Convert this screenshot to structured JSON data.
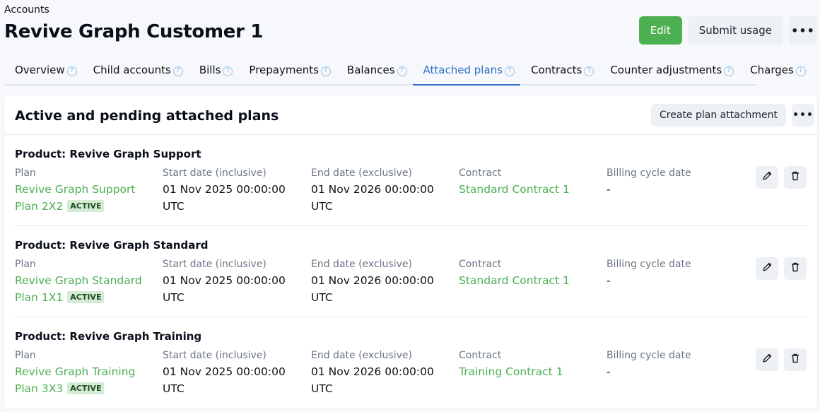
{
  "breadcrumb": "Accounts",
  "title": "Revive Graph Customer 1",
  "header": {
    "edit": "Edit",
    "submit_usage": "Submit usage",
    "more": "•••"
  },
  "colors": {
    "accent": "#4caf50",
    "tab_active": "#2f6fc4"
  },
  "tabs": [
    {
      "label": "Overview",
      "icon": "help-icon"
    },
    {
      "label": "Child accounts",
      "icon": "help-icon"
    },
    {
      "label": "Bills",
      "icon": "help-icon"
    },
    {
      "label": "Prepayments",
      "icon": "help-icon"
    },
    {
      "label": "Balances",
      "icon": "help-icon"
    },
    {
      "label": "Attached plans",
      "icon": "help-icon",
      "active": true
    },
    {
      "label": "Contracts",
      "icon": "help-icon"
    },
    {
      "label": "Counter adjustments",
      "icon": "help-icon"
    },
    {
      "label": "Charges",
      "icon": "info-icon"
    }
  ],
  "section": {
    "title": "Active and pending attached plans",
    "create": "Create plan attachment",
    "more": "•••"
  },
  "labels": {
    "plan": "Plan",
    "start": "Start date (inclusive)",
    "end": "End date (exclusive)",
    "contract": "Contract",
    "billing": "Billing cycle date"
  },
  "plans": [
    {
      "product": "Product: Revive Graph Support",
      "plan": "Revive Graph Support Plan 2X2",
      "status": "ACTIVE",
      "start": "01 Nov 2025 00:00:00 UTC",
      "end": "01 Nov 2026 00:00:00 UTC",
      "contract": "Standard Contract 1",
      "billing": "-"
    },
    {
      "product": "Product: Revive Graph Standard",
      "plan": "Revive Graph Standard Plan 1X1",
      "status": "ACTIVE",
      "start": "01 Nov 2025 00:00:00 UTC",
      "end": "01 Nov 2026 00:00:00 UTC",
      "contract": "Standard Contract 1",
      "billing": "-"
    },
    {
      "product": "Product: Revive Graph Training",
      "plan": "Revive Graph Training Plan 3X3",
      "status": "ACTIVE",
      "start": "01 Nov 2025 00:00:00 UTC",
      "end": "01 Nov 2026 00:00:00 UTC",
      "contract": "Training Contract 1",
      "billing": "-"
    }
  ]
}
